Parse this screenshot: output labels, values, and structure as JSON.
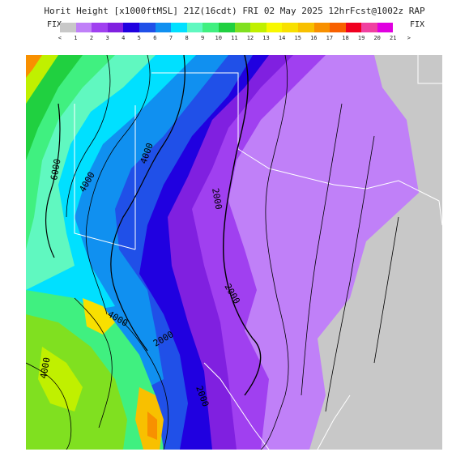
{
  "title": "Horit Height [x1000ftMSL] 21Z(16cdt) FRI 02 May 2025 12hrFcst@1002z RAP",
  "fix_left": "FIX",
  "fix_right": "FIX",
  "legend": {
    "labels": [
      "<",
      "1",
      "2",
      "3",
      "4",
      "5",
      "6",
      "7",
      "8",
      "9",
      "10",
      "11",
      "12",
      "13",
      "14",
      "15",
      "16",
      "17",
      "18",
      "19",
      "20",
      "21",
      ">"
    ],
    "colors": [
      "#c8c8c8",
      "#c080f8",
      "#a040f0",
      "#8020e0",
      "#2000e0",
      "#2050e8",
      "#1090f0",
      "#00e0ff",
      "#60f8c0",
      "#40f080",
      "#20d040",
      "#80e020",
      "#c0f000",
      "#f8f800",
      "#f8e000",
      "#f8c000",
      "#f89000",
      "#f86000",
      "#f00020",
      "#f040a0",
      "#e000e0"
    ]
  },
  "map": {
    "contour_labels": [
      "6000",
      "4000",
      "4000",
      "2000",
      "2000",
      "2000",
      "4000",
      "2000",
      "4000"
    ]
  }
}
